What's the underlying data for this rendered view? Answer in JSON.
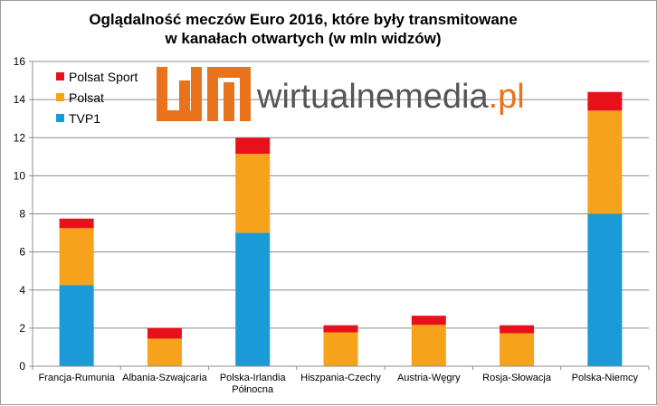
{
  "chart_data": {
    "type": "bar",
    "stacked": true,
    "title_lines": [
      "Oglądalność meczów Euro 2016, które były transmitowane",
      "w kanałach otwartych (w mln widzów)"
    ],
    "categories": [
      [
        "Francja-Rumunia"
      ],
      [
        "Albania-Szwajcaria"
      ],
      [
        "Polska-Irlandia",
        "Północna"
      ],
      [
        "Hiszpania-Czechy"
      ],
      [
        "Austria-Węgry"
      ],
      [
        "Rosja-Słowacja"
      ],
      [
        "Polska-Niemcy"
      ]
    ],
    "series": [
      {
        "name": "TVP1",
        "color": "#1a9ad6",
        "values": [
          4.25,
          0,
          7.0,
          0,
          0,
          0,
          8.0
        ]
      },
      {
        "name": "Polsat",
        "color": "#f7a21b",
        "values": [
          3.0,
          1.45,
          4.15,
          1.78,
          2.17,
          1.73,
          5.42
        ]
      },
      {
        "name": "Polsat Sport",
        "color": "#e8101a",
        "values": [
          0.5,
          0.55,
          0.85,
          0.37,
          0.48,
          0.42,
          0.98
        ]
      }
    ],
    "legend_order": [
      "Polsat Sport",
      "Polsat",
      "TVP1"
    ],
    "legend_position": "top-left",
    "ylim": [
      0,
      16
    ],
    "yticks": [
      0,
      2,
      4,
      6,
      8,
      10,
      12,
      14,
      16
    ],
    "grid": true
  },
  "watermark": {
    "text": "wirtualnemedia",
    "suffix": ".pl",
    "logo_color": "#e8731c"
  }
}
